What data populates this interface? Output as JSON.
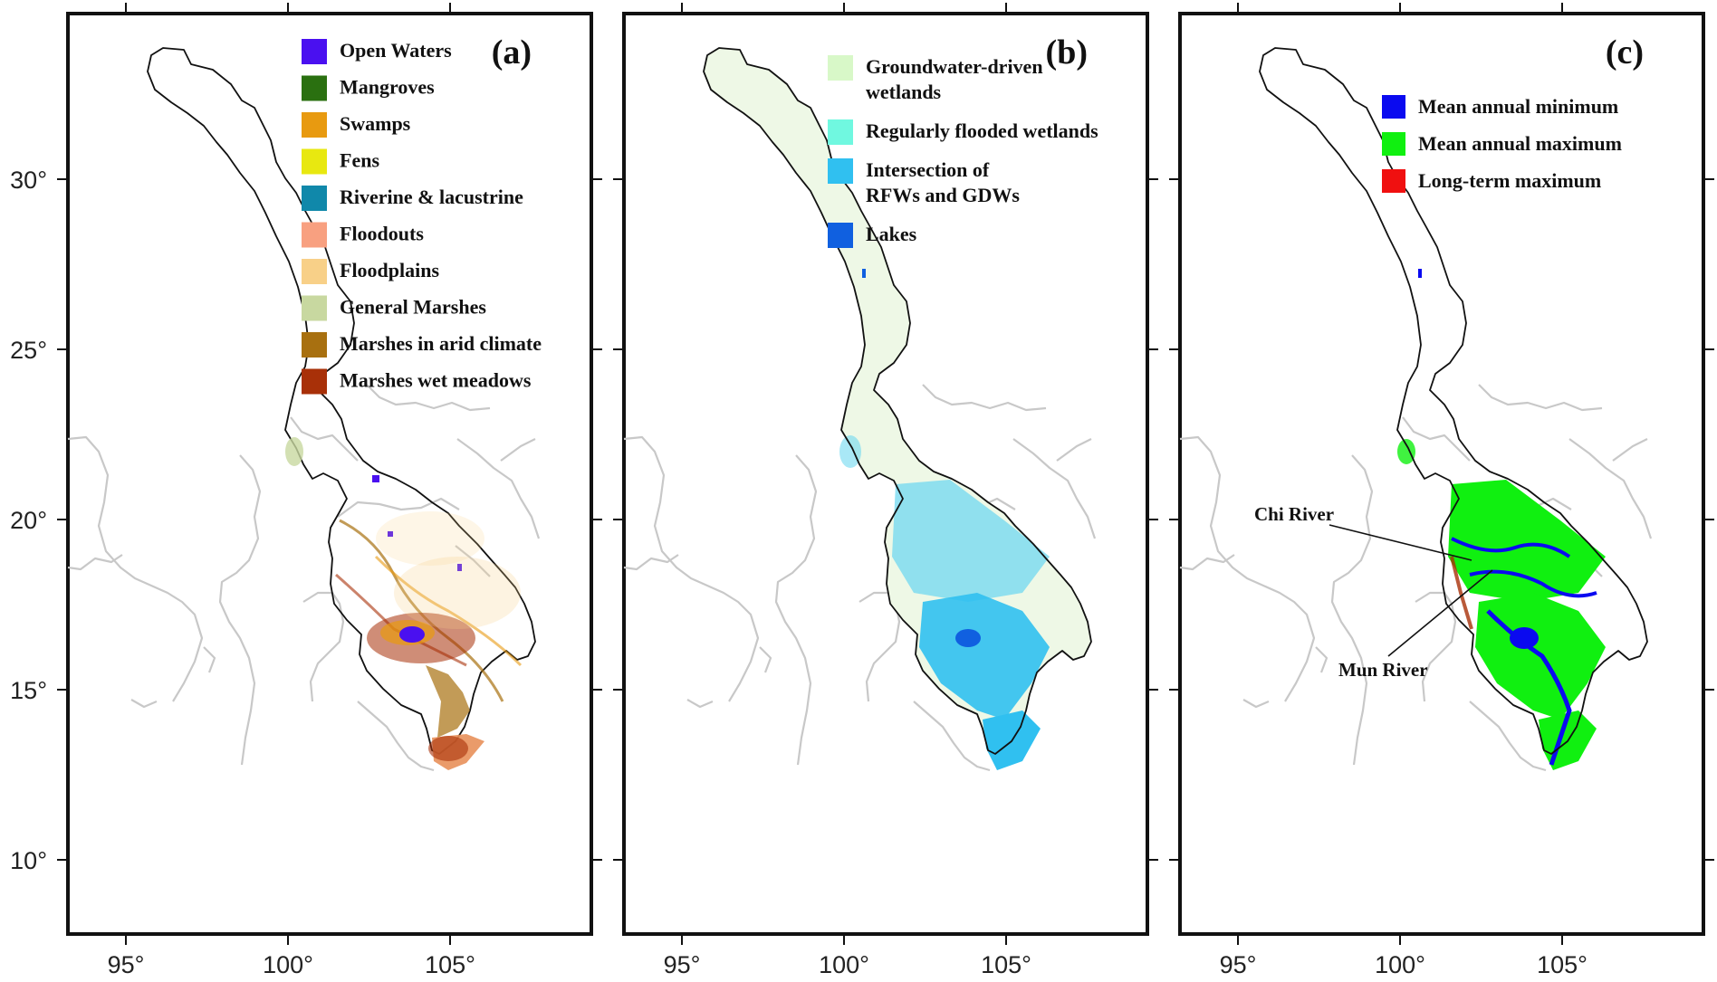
{
  "axes": {
    "x_ticks": [
      "95°",
      "100°",
      "105°"
    ],
    "y_ticks": [
      "30°",
      "25°",
      "20°",
      "15°",
      "10°"
    ]
  },
  "panels": [
    {
      "label": "(a)",
      "legend": [
        {
          "text": [
            "Open Waters"
          ],
          "color": "#4a10f0"
        },
        {
          "text": [
            "Mangroves"
          ],
          "color": "#2a7010"
        },
        {
          "text": [
            "Swamps"
          ],
          "color": "#e89a10"
        },
        {
          "text": [
            "Fens"
          ],
          "color": "#e8e810"
        },
        {
          "text": [
            "Riverine & lacustrine"
          ],
          "color": "#1088aa"
        },
        {
          "text": [
            "Floodouts"
          ],
          "color": "#f8a080"
        },
        {
          "text": [
            "Floodplains"
          ],
          "color": "#f8d088"
        },
        {
          "text": [
            "General Marshes"
          ],
          "color": "#c8d8a0"
        },
        {
          "text": [
            "Marshes in arid climate"
          ],
          "color": "#a87010"
        },
        {
          "text": [
            "Marshes wet meadows"
          ],
          "color": "#a83008"
        }
      ]
    },
    {
      "label": "(b)",
      "legend": [
        {
          "text": [
            "Groundwater-driven",
            "wetlands"
          ],
          "color": "#d8f8c8"
        },
        {
          "text": [
            "Regularly flooded wetlands"
          ],
          "color": "#70f8e0"
        },
        {
          "text": [
            "Intersection of",
            "RFWs and GDWs"
          ],
          "color": "#30c0f0"
        },
        {
          "text": [
            "Lakes"
          ],
          "color": "#1060e0"
        }
      ]
    },
    {
      "label": "(c)",
      "legend": [
        {
          "text": [
            "Mean annual minimum"
          ],
          "color": "#0a0af0"
        },
        {
          "text": [
            "Mean annual maximum"
          ],
          "color": "#10f010"
        },
        {
          "text": [
            "Long-term maximum"
          ],
          "color": "#f01010"
        }
      ],
      "annotations": [
        "Chi River",
        "Mun River"
      ]
    }
  ],
  "colors": {
    "frame": "#111111",
    "coastline": "#c8c8c8",
    "basin_outline": "#111111"
  }
}
